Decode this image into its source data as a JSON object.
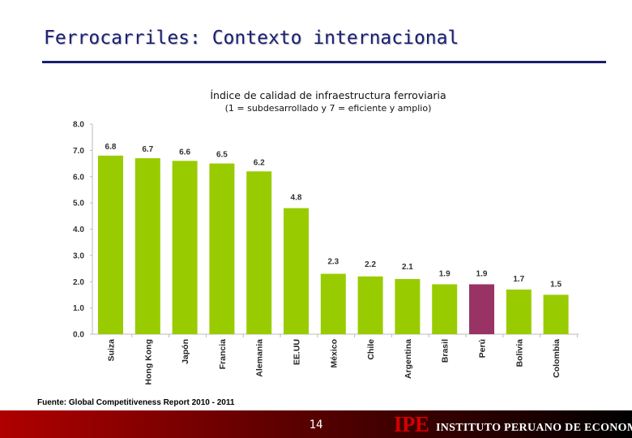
{
  "slide": {
    "title": "Ferrocarriles: Contexto internacional",
    "source": "Fuente: Global Competitiveness Report 2010 - 2011",
    "page_number": "14",
    "logo": "IPE",
    "institute": "INSTITUTO PERUANO DE ECONOMÍA"
  },
  "colors": {
    "bar": "#99cc00",
    "highlight": "#993366",
    "title": "#1a1f6e"
  },
  "chart_data": {
    "type": "bar",
    "title": "Índice de calidad de infraestructura ferroviaria",
    "subtitle": "(1 = subdesarrollado y 7 = eficiente y amplio)",
    "categories": [
      "Suiza",
      "Hong Kong",
      "Japón",
      "Francia",
      "Alemania",
      "EE.UU",
      "México",
      "Chile",
      "Argentina",
      "Brasil",
      "Perú",
      "Bolivia",
      "Colombia"
    ],
    "values": [
      6.8,
      6.7,
      6.6,
      6.5,
      6.2,
      4.8,
      2.3,
      2.2,
      2.1,
      1.9,
      1.9,
      1.7,
      1.5
    ],
    "value_labels": [
      "6.8",
      "6.7",
      "6.6",
      "6.5",
      "6.2",
      "4.8",
      "2.3",
      "2.2",
      "2.1",
      "1.9",
      "1.9",
      "1.7",
      "1.5"
    ],
    "highlight": "Perú",
    "ylim": [
      0,
      8
    ],
    "yticks": [
      "0.0",
      "1.0",
      "2.0",
      "3.0",
      "4.0",
      "5.0",
      "6.0",
      "7.0",
      "8.0"
    ],
    "xlabel": "",
    "ylabel": "",
    "grid": false
  }
}
